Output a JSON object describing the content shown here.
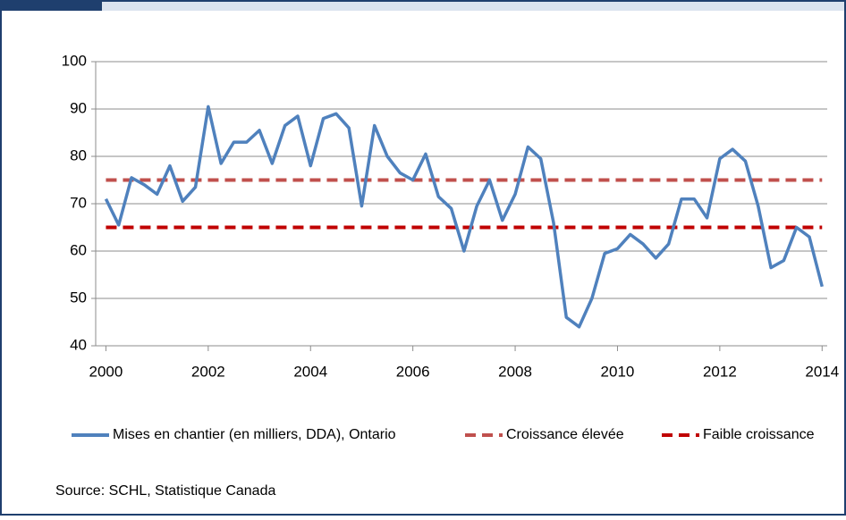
{
  "chart_data": {
    "type": "line",
    "source": "Source: SCHL, Statistique Canada",
    "x": [
      2000,
      2000.25,
      2000.5,
      2000.75,
      2001,
      2001.25,
      2001.5,
      2001.75,
      2002,
      2002.25,
      2002.5,
      2002.75,
      2003,
      2003.25,
      2003.5,
      2003.75,
      2004,
      2004.25,
      2004.5,
      2004.75,
      2005,
      2005.25,
      2005.5,
      2005.75,
      2006,
      2006.25,
      2006.5,
      2006.75,
      2007,
      2007.25,
      2007.5,
      2007.75,
      2008,
      2008.25,
      2008.5,
      2008.75,
      2009,
      2009.25,
      2009.5,
      2009.75,
      2010,
      2010.25,
      2010.5,
      2010.75,
      2011,
      2011.25,
      2011.5,
      2011.75,
      2012,
      2012.25,
      2012.5,
      2012.75,
      2013,
      2013.25,
      2013.5,
      2013.75,
      2014
    ],
    "series": [
      {
        "name": "Mises en chantier (en milliers, DDA), Ontario",
        "color": "#4f81bd",
        "dash": "solid",
        "values": [
          71,
          65.5,
          75.5,
          74,
          72,
          78,
          70.5,
          73.5,
          90.5,
          78.5,
          83,
          83,
          85.5,
          78.5,
          86.5,
          88.5,
          78,
          88,
          89,
          86,
          69.5,
          86.5,
          80,
          76.5,
          75,
          80.5,
          71.5,
          69,
          60,
          69.5,
          75,
          66.5,
          72,
          82,
          79.5,
          66,
          46,
          44,
          50,
          59.5,
          60.5,
          63.5,
          61.5,
          58.5,
          61.5,
          71,
          71,
          67,
          79.5,
          81.5,
          79,
          69.5,
          56.5,
          58,
          65,
          63,
          52.5
        ]
      },
      {
        "name": "Croissance élevée",
        "color": "#c0504d",
        "dash": "dashed",
        "values": [
          75,
          75,
          75,
          75,
          75,
          75,
          75,
          75,
          75,
          75,
          75,
          75,
          75,
          75,
          75,
          75,
          75,
          75,
          75,
          75,
          75,
          75,
          75,
          75,
          75,
          75,
          75,
          75,
          75,
          75,
          75,
          75,
          75,
          75,
          75,
          75,
          75,
          75,
          75,
          75,
          75,
          75,
          75,
          75,
          75,
          75,
          75,
          75,
          75,
          75,
          75,
          75,
          75,
          75,
          75,
          75,
          75
        ]
      },
      {
        "name": "Faible croissance",
        "color": "#c00000",
        "dash": "dashed",
        "values": [
          65,
          65,
          65,
          65,
          65,
          65,
          65,
          65,
          65,
          65,
          65,
          65,
          65,
          65,
          65,
          65,
          65,
          65,
          65,
          65,
          65,
          65,
          65,
          65,
          65,
          65,
          65,
          65,
          65,
          65,
          65,
          65,
          65,
          65,
          65,
          65,
          65,
          65,
          65,
          65,
          65,
          65,
          65,
          65,
          65,
          65,
          65,
          65,
          65,
          65,
          65,
          65,
          65,
          65,
          65,
          65,
          65
        ]
      }
    ],
    "xlim": [
      1999.8,
      2014.1
    ],
    "xticks": [
      2000,
      2002,
      2004,
      2006,
      2008,
      2010,
      2012,
      2014
    ],
    "ylim": [
      40,
      100
    ],
    "yticks": [
      40,
      50,
      60,
      70,
      80,
      90,
      100
    ],
    "grid": true,
    "legend": "bottom"
  }
}
